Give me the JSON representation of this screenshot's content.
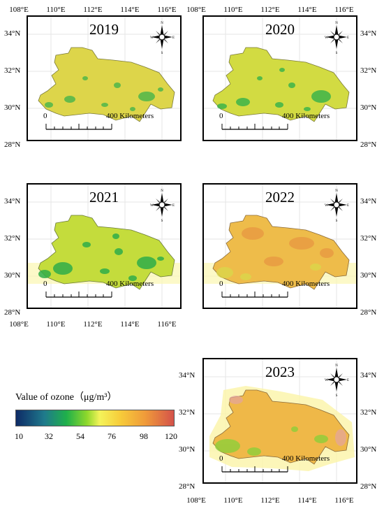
{
  "maps": [
    {
      "year": "2019"
    },
    {
      "year": "2020"
    },
    {
      "year": "2021"
    },
    {
      "year": "2022"
    },
    {
      "year": "2023"
    }
  ],
  "axes": {
    "lon_labels": [
      "108°E",
      "110°E",
      "112°E",
      "114°E",
      "116°E"
    ],
    "lat_labels": [
      "28°N",
      "30°N",
      "32°N",
      "34°N"
    ]
  },
  "scalebar": {
    "start_label": "0",
    "end_label": "400 Kilometers"
  },
  "compass": {
    "n": "N",
    "s": "S",
    "e": "E",
    "w": "W"
  },
  "legend": {
    "title": "Value of ozone（μg/m³）",
    "ticks": [
      "10",
      "32",
      "54",
      "76",
      "98",
      "120"
    ],
    "colors": [
      "#0e2a66",
      "#1f7a8c",
      "#1fb04a",
      "#8fd82c",
      "#f4f35a",
      "#f7cc3a",
      "#ef9a3a",
      "#d4524a"
    ]
  }
}
